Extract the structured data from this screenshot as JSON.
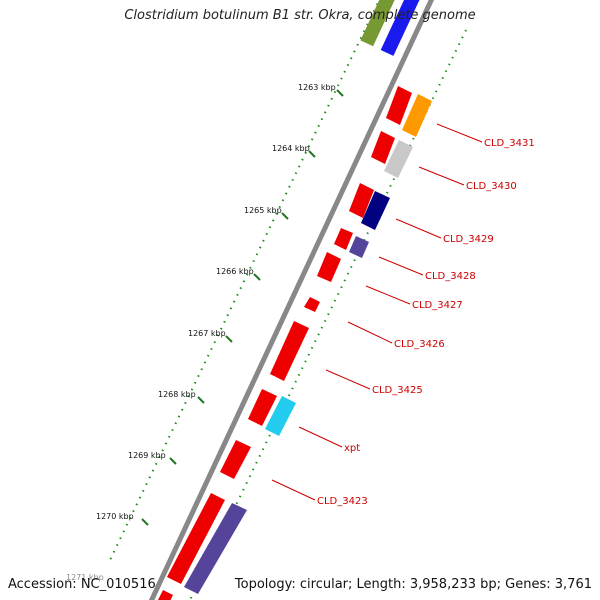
{
  "title": "Clostridium botulinum B1 str. Okra, complete genome",
  "footer": {
    "accession": "Accession: NC_010516",
    "summary": "Topology: circular; Length: 3,958,233 bp; Genes: 3,761"
  },
  "ticks": [
    "1263 kbp",
    "1264 kbp",
    "1265 kbp",
    "1266 kbp",
    "1267 kbp",
    "1268 kbp",
    "1269 kbp",
    "1270 kbp",
    "1271 kbp"
  ],
  "gene_labels": [
    "CLD_3431",
    "CLD_3430",
    "CLD_3429",
    "CLD_3428",
    "CLD_3427",
    "CLD_3426",
    "CLD_3425",
    "xpt",
    "CLD_3423"
  ],
  "colors": {
    "forward": "#ee0000",
    "label": "#cc0000",
    "backbone": "#888888",
    "ticks_outer": "#228822",
    "feature_orange": "#ff9900",
    "feature_grey": "#c8c8c8",
    "feature_navy": "#000080",
    "feature_slate": "#554499",
    "feature_cyan": "#22ccee",
    "feature_blue": "#0000ee",
    "feature_olive": "#779933"
  }
}
